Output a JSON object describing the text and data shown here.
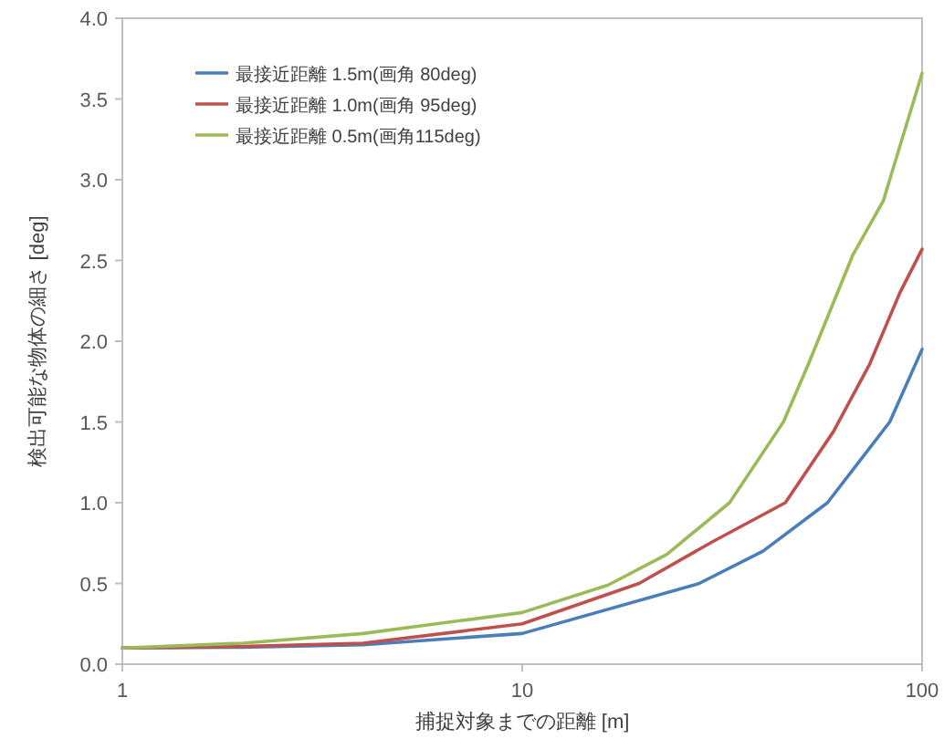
{
  "chart_data": {
    "type": "line",
    "xlabel": "捕捉対象までの距離 [m]",
    "ylabel": "検出可能な物体の細さ [deg]",
    "log": "x",
    "xlim": [
      1,
      100
    ],
    "xticks": [
      1,
      10,
      100
    ],
    "ylim": [
      0,
      4
    ],
    "yticks": [
      {
        "value": 0,
        "label": "0.0"
      },
      {
        "value": 0.5,
        "label": "0.5"
      },
      {
        "value": 1,
        "label": "1.0"
      },
      {
        "value": 1.5,
        "label": "1.5"
      },
      {
        "value": 2,
        "label": "2.0"
      },
      {
        "value": 2.5,
        "label": "2.5"
      },
      {
        "value": 3,
        "label": "3.0"
      },
      {
        "value": 3.5,
        "label": "3.5"
      },
      {
        "value": 4,
        "label": "4.0"
      }
    ],
    "legend": "top left",
    "line_style": "solid",
    "marker": "none",
    "series": [
      {
        "name": "最接近距離 1.5m(画角 80deg)",
        "color": "#4a7ebb",
        "x": [
          1,
          2,
          4,
          10,
          27.7,
          40,
          58,
          83,
          100
        ],
        "values": [
          0.1,
          0.105,
          0.12,
          0.19,
          0.5,
          0.7,
          1.0,
          1.5,
          1.95
        ]
      },
      {
        "name": "最接近距離 1.0m(画角 95deg)",
        "color": "#c0504d",
        "x": [
          1,
          2,
          4,
          10,
          19.6,
          30,
          45.5,
          60,
          74,
          88,
          100
        ],
        "values": [
          0.1,
          0.11,
          0.13,
          0.25,
          0.5,
          0.76,
          1.0,
          1.44,
          1.86,
          2.3,
          2.57
        ]
      },
      {
        "name": "最接近距離 0.5m(画角115deg)",
        "color": "#9bbb59",
        "x": [
          1,
          2,
          4,
          10,
          16.4,
          23,
          33,
          45,
          52,
          67,
          80,
          100
        ],
        "values": [
          0.1,
          0.13,
          0.19,
          0.32,
          0.49,
          0.68,
          1.0,
          1.5,
          1.86,
          2.53,
          2.87,
          3.66
        ]
      }
    ]
  }
}
